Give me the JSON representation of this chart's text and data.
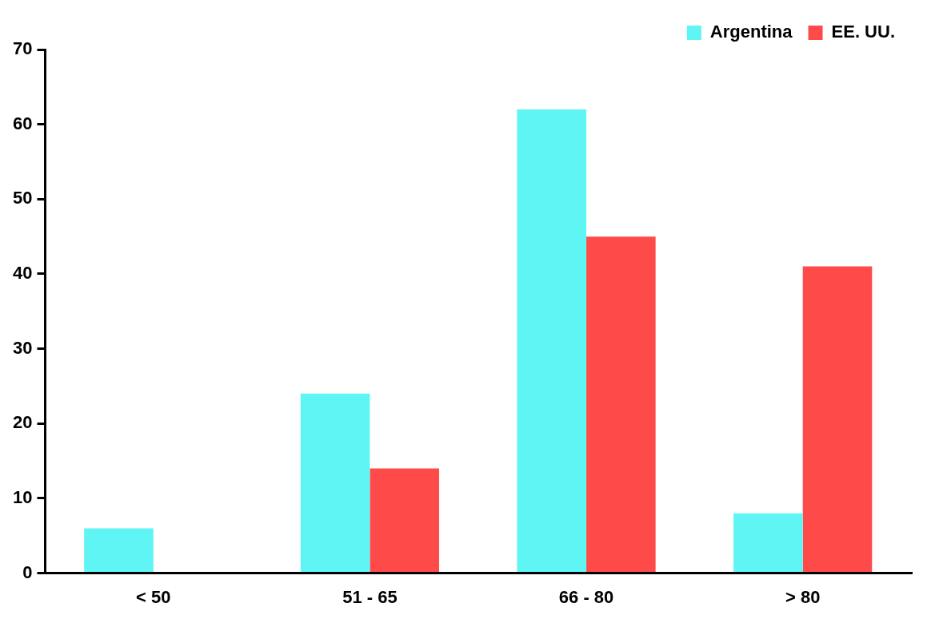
{
  "chart_data": {
    "type": "bar",
    "categories": [
      "< 50",
      "51 - 65",
      "66 - 80",
      "> 80"
    ],
    "series": [
      {
        "name": "Argentina",
        "color": "#5ff5f5",
        "values": [
          6,
          24,
          62,
          8
        ]
      },
      {
        "name": "EE. UU.",
        "color": "#ff4a4a",
        "values": [
          null,
          14,
          45,
          41
        ]
      }
    ],
    "ylim": [
      0,
      70
    ],
    "yticks": [
      0,
      10,
      20,
      30,
      40,
      50,
      60,
      70
    ],
    "grid": false,
    "legend": "top right"
  }
}
